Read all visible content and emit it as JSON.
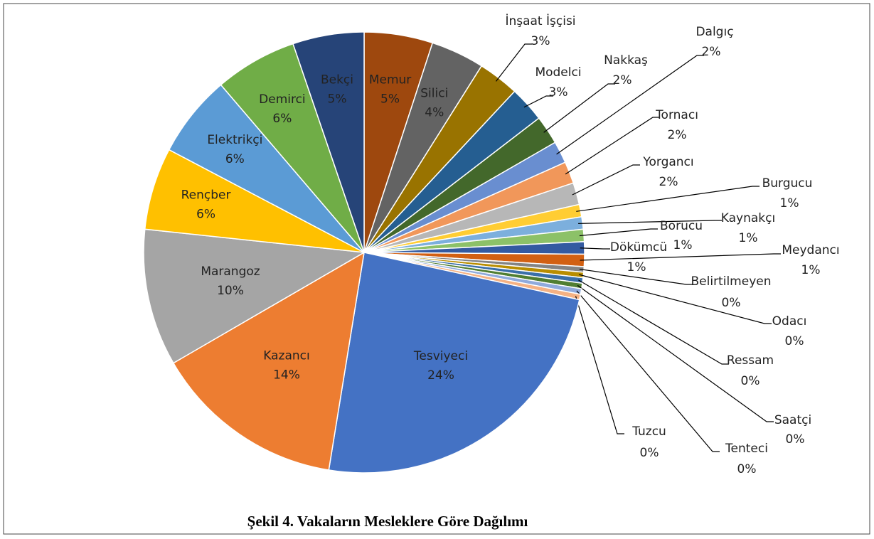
{
  "chart_data": {
    "type": "pie",
    "title": "Şekil 4. Vakaların Mesleklere Göre Dağılımı",
    "categories": [
      "Memur",
      "Silici",
      "İnşaat İşçisi",
      "Modelci",
      "Nakkaş",
      "Dalgıç",
      "Tornacı",
      "Yorgancı",
      "Burgucu",
      "Kaynakçı",
      "Borucu",
      "Dökümcü",
      "Meydancı",
      "Belirtilmeyen",
      "Odacı",
      "Ressam",
      "Saatçi",
      "Tenteci",
      "Tuzcu",
      "Tesviyeci",
      "Kazancı",
      "Marangoz",
      "Rençber",
      "Elektrikçi",
      "Demirci",
      "Bekçi"
    ],
    "values": [
      5.0,
      3.9,
      3.0,
      2.6,
      2.1,
      1.6,
      1.6,
      1.6,
      0.9,
      0.9,
      0.9,
      0.9,
      0.9,
      0.4,
      0.4,
      0.4,
      0.4,
      0.4,
      0.4,
      24.0,
      14.0,
      10.0,
      6.0,
      6.0,
      6.0,
      5.2
    ],
    "value_labels": [
      "5%",
      "4%",
      "3%",
      "3%",
      "2%",
      "2%",
      "2%",
      "2%",
      "1%",
      "1%",
      "1%",
      "1%",
      "1%",
      "0%",
      "0%",
      "0%",
      "0%",
      "0%",
      "0%",
      "24%",
      "14%",
      "10%",
      "6%",
      "6%",
      "6%",
      "5%"
    ],
    "colors": [
      "#9e480e",
      "#636363",
      "#997300",
      "#255e91",
      "#43682b",
      "#698ed0",
      "#f1975a",
      "#b7b7b7",
      "#ffcd33",
      "#7cafdd",
      "#8cc168",
      "#335aa1",
      "#d26012",
      "#848484",
      "#b88d00",
      "#3a6fa8",
      "#507e32",
      "#8faadc",
      "#f4b183",
      "#4472c4",
      "#ed7d31",
      "#a5a5a5",
      "#ffc000",
      "#5b9bd5",
      "#70ad47",
      "#264478"
    ]
  }
}
